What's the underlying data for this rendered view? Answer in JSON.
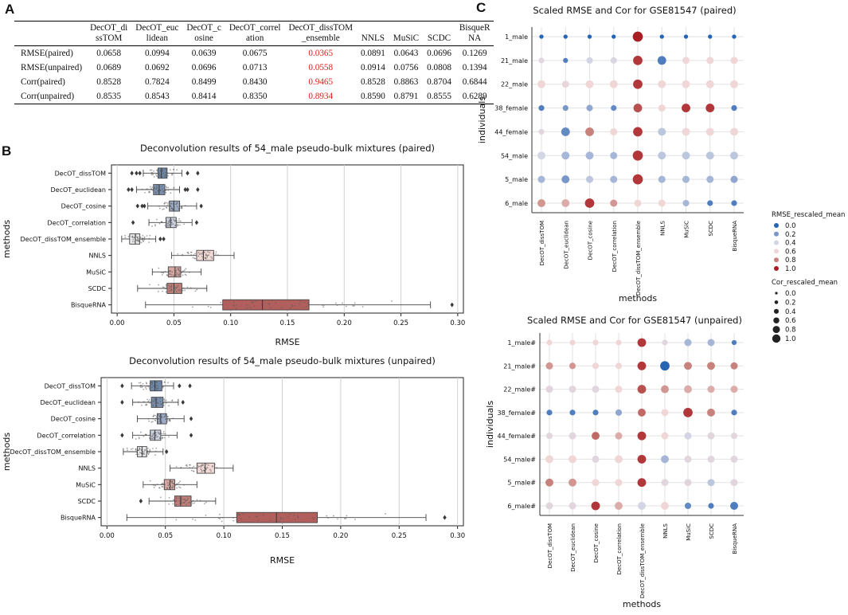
{
  "panels": {
    "a": "A",
    "b": "B",
    "c": "C"
  },
  "table": {
    "headers": [
      [
        "",
        ""
      ],
      [
        "DecOT_di",
        "ssTOM"
      ],
      [
        "DecOT_euc",
        "lidean"
      ],
      [
        "DecOT_c",
        "osine"
      ],
      [
        "DecOT_correl",
        "ation"
      ],
      [
        "DecOT_dissTOM",
        "_ensemble"
      ],
      [
        "",
        "NNLS"
      ],
      [
        "",
        "MuSiC"
      ],
      [
        "",
        "SCDC"
      ],
      [
        "BisqueR",
        "NA"
      ]
    ],
    "rows": [
      {
        "label": "RMSE(paired)",
        "values": [
          "0.0658",
          "0.0994",
          "0.0639",
          "0.0675",
          "0.0365",
          "0.0891",
          "0.0643",
          "0.0696",
          "0.1269"
        ]
      },
      {
        "label": "RMSE(unpaired)",
        "values": [
          "0.0689",
          "0.0692",
          "0.0696",
          "0.0713",
          "0.0558",
          "0.0914",
          "0.0756",
          "0.0808",
          "0.1394"
        ]
      },
      {
        "label": "Corr(paired)",
        "values": [
          "0.8528",
          "0.7824",
          "0.8499",
          "0.8430",
          "0.9465",
          "0.8528",
          "0.8863",
          "0.8704",
          "0.6844"
        ]
      },
      {
        "label": "Corr(unpaired)",
        "values": [
          "0.8535",
          "0.8543",
          "0.8414",
          "0.8350",
          "0.8934",
          "0.8590",
          "0.8791",
          "0.8555",
          "0.6289"
        ]
      }
    ],
    "highlight_col": 4,
    "highlight_color": "#e0201a"
  },
  "chart_data": [
    {
      "type": "box",
      "title": "Deconvolution results of 54_male pseudo-bulk mixtures (paired)",
      "xlabel": "RMSE",
      "ylabel": "methods",
      "xlim": [
        -0.005,
        0.305
      ],
      "xticks": [
        0.0,
        0.05,
        0.1,
        0.15,
        0.2,
        0.25,
        0.3
      ],
      "xtick_labels": [
        "0.00",
        "0.05",
        "0.10",
        "0.15",
        "0.20",
        "0.25",
        "0.30"
      ],
      "categories": [
        "DecOT_dissTOM",
        "DecOT_euclidean",
        "DecOT_cosine",
        "DecOT_correlation",
        "DecOT_dissTOM_ensemble",
        "NNLS",
        "MuSiC",
        "SCDC",
        "BisqueRNA"
      ],
      "colors": [
        "#6f87a8",
        "#7a8fae",
        "#9cabc6",
        "#cdd3e0",
        "#e9e9ec",
        "#f0d9d6",
        "#d8a7a2",
        "#c07e79",
        "#b15f5c"
      ],
      "boxes": [
        {
          "wlo": 0.023,
          "q1": 0.036,
          "med": 0.039,
          "q3": 0.044,
          "whi": 0.057,
          "fliers": [
            0.013,
            0.017,
            0.02,
            0.062,
            0.071
          ]
        },
        {
          "wlo": 0.017,
          "q1": 0.032,
          "med": 0.037,
          "q3": 0.042,
          "whi": 0.055,
          "fliers": [
            0.01,
            0.013,
            0.06,
            0.062,
            0.071
          ]
        },
        {
          "wlo": 0.027,
          "q1": 0.046,
          "med": 0.05,
          "q3": 0.055,
          "whi": 0.07,
          "fliers": [
            0.018,
            0.022,
            0.024,
            0.074
          ]
        },
        {
          "wlo": 0.028,
          "q1": 0.043,
          "med": 0.047,
          "q3": 0.052,
          "whi": 0.066,
          "fliers": [
            0.014,
            0.07
          ]
        },
        {
          "wlo": 0.004,
          "q1": 0.011,
          "med": 0.016,
          "q3": 0.02,
          "whi": 0.034,
          "fliers": [
            0.038,
            0.041
          ]
        },
        {
          "wlo": 0.048,
          "q1": 0.07,
          "med": 0.076,
          "q3": 0.085,
          "whi": 0.103,
          "fliers": []
        },
        {
          "wlo": 0.031,
          "q1": 0.045,
          "med": 0.051,
          "q3": 0.056,
          "whi": 0.074,
          "fliers": []
        },
        {
          "wlo": 0.018,
          "q1": 0.044,
          "med": 0.05,
          "q3": 0.057,
          "whi": 0.079,
          "fliers": []
        },
        {
          "wlo": 0.025,
          "q1": 0.093,
          "med": 0.128,
          "q3": 0.169,
          "whi": 0.276,
          "fliers": [
            0.295
          ]
        }
      ]
    },
    {
      "type": "box",
      "title": "Deconvolution results of 54_male pseudo-bulk mixtures (unpaired)",
      "xlabel": "RMSE",
      "ylabel": "methods",
      "xlim": [
        -0.005,
        0.305
      ],
      "xticks": [
        0.0,
        0.05,
        0.1,
        0.15,
        0.2,
        0.25,
        0.3
      ],
      "xtick_labels": [
        "0.00",
        "0.05",
        "0.10",
        "0.15",
        "0.20",
        "0.25",
        "0.30"
      ],
      "categories": [
        "DecOT_dissTOM",
        "DecOT_euclidean",
        "DecOT_cosine",
        "DecOT_correlation",
        "DecOT_dissTOM_ensemble",
        "NNLS",
        "MuSiC",
        "SCDC",
        "BisqueRNA"
      ],
      "colors": [
        "#6f87a8",
        "#7a8fae",
        "#9cabc6",
        "#cdd3e0",
        "#e9e9ec",
        "#f0d9d6",
        "#d8a7a2",
        "#c07e79",
        "#b15f5c"
      ],
      "boxes": [
        {
          "wlo": 0.021,
          "q1": 0.037,
          "med": 0.041,
          "q3": 0.047,
          "whi": 0.057,
          "fliers": [
            0.013,
            0.062,
            0.071
          ]
        },
        {
          "wlo": 0.022,
          "q1": 0.038,
          "med": 0.042,
          "q3": 0.048,
          "whi": 0.061,
          "fliers": [
            0.013,
            0.065
          ]
        },
        {
          "wlo": 0.026,
          "q1": 0.043,
          "med": 0.046,
          "q3": 0.051,
          "whi": 0.066,
          "fliers": [
            0.072
          ]
        },
        {
          "wlo": 0.022,
          "q1": 0.037,
          "med": 0.041,
          "q3": 0.046,
          "whi": 0.06,
          "fliers": [
            0.013,
            0.072
          ]
        },
        {
          "wlo": 0.014,
          "q1": 0.026,
          "med": 0.03,
          "q3": 0.034,
          "whi": 0.048,
          "fliers": [
            0.051
          ]
        },
        {
          "wlo": 0.054,
          "q1": 0.077,
          "med": 0.084,
          "q3": 0.092,
          "whi": 0.108,
          "fliers": []
        },
        {
          "wlo": 0.031,
          "q1": 0.049,
          "med": 0.054,
          "q3": 0.058,
          "whi": 0.077,
          "fliers": []
        },
        {
          "wlo": 0.036,
          "q1": 0.058,
          "med": 0.063,
          "q3": 0.072,
          "whi": 0.093,
          "fliers": [
            0.029
          ]
        },
        {
          "wlo": 0.017,
          "q1": 0.111,
          "med": 0.145,
          "q3": 0.18,
          "whi": 0.273,
          "fliers": [
            0.289
          ]
        }
      ]
    },
    {
      "type": "dotplot",
      "title": "Scaled RMSE and Cor for GSE81547 (paired)",
      "xlabel": "methods",
      "ylabel": "individuals",
      "methods": [
        "DecOT_dissTOM",
        "DecOT_euclidean",
        "DecOT_cosine",
        "DecOT_correlation",
        "DecOT_dissTOM_ensemble",
        "NNLS",
        "MuSiC",
        "SCDC",
        "BisqueRNA"
      ],
      "individuals": [
        "1_male",
        "21_male",
        "22_male",
        "38_female",
        "44_female",
        "54_male",
        "5_male",
        "6_male"
      ],
      "rmse_rescaled_mean": [
        [
          0.0,
          0.0,
          0.0,
          0.0,
          1.0,
          0.0,
          0.0,
          0.0,
          0.0
        ],
        [
          0.5,
          0.1,
          0.4,
          0.45,
          0.95,
          0.1,
          0.6,
          0.6,
          0.6
        ],
        [
          0.6,
          0.55,
          0.6,
          0.6,
          0.95,
          0.6,
          0.6,
          0.6,
          0.6
        ],
        [
          0.1,
          0.2,
          0.25,
          0.15,
          0.9,
          0.6,
          0.95,
          0.95,
          0.1
        ],
        [
          0.5,
          0.15,
          0.8,
          0.6,
          0.95,
          0.35,
          0.6,
          0.6,
          0.6
        ],
        [
          0.4,
          0.3,
          0.3,
          0.3,
          0.95,
          0.35,
          0.35,
          0.35,
          0.35
        ],
        [
          0.3,
          0.2,
          0.35,
          0.3,
          0.95,
          0.3,
          0.3,
          0.3,
          0.25
        ],
        [
          0.75,
          0.7,
          0.95,
          0.75,
          0.6,
          0.6,
          0.3,
          0.1,
          0.1
        ]
      ],
      "cor_rescaled_mean": [
        [
          0.1,
          0.1,
          0.1,
          0.1,
          0.9,
          0.1,
          0.1,
          0.1,
          0.1
        ],
        [
          0.3,
          0.2,
          0.4,
          0.4,
          0.8,
          0.7,
          0.5,
          0.5,
          0.5
        ],
        [
          0.6,
          0.5,
          0.6,
          0.6,
          0.8,
          0.6,
          0.6,
          0.6,
          0.6
        ],
        [
          0.3,
          0.3,
          0.4,
          0.3,
          0.7,
          0.5,
          0.7,
          0.7,
          0.3
        ],
        [
          0.3,
          0.7,
          0.7,
          0.5,
          0.8,
          0.6,
          0.6,
          0.6,
          0.6
        ],
        [
          0.6,
          0.6,
          0.6,
          0.5,
          0.9,
          0.6,
          0.6,
          0.6,
          0.6
        ],
        [
          0.5,
          0.6,
          0.5,
          0.5,
          0.9,
          0.5,
          0.5,
          0.5,
          0.5
        ],
        [
          0.6,
          0.6,
          0.8,
          0.5,
          0.5,
          0.5,
          0.4,
          0.3,
          0.3
        ]
      ]
    },
    {
      "type": "dotplot",
      "title": "Scaled RMSE and Cor for GSE81547 (unpaired)",
      "xlabel": "methods",
      "ylabel": "individuals",
      "methods": [
        "DecOT_dissTOM",
        "DecOT_euclidean",
        "DecOT_cosine",
        "DecOT_correlation",
        "DecOT_dissTOM_ensemble",
        "NNLS",
        "MuSiC",
        "SCDC",
        "BisqueRNA"
      ],
      "individuals": [
        "1_male#",
        "21_male#",
        "22_male#",
        "38_female#",
        "44_female#",
        "54_male#",
        "5_male#",
        "6_male#"
      ],
      "rmse_rescaled_mean": [
        [
          0.6,
          0.6,
          0.6,
          0.6,
          0.95,
          0.5,
          0.3,
          0.3,
          0.1
        ],
        [
          0.75,
          0.75,
          0.6,
          0.6,
          0.95,
          0.0,
          0.8,
          0.8,
          0.8
        ],
        [
          0.5,
          0.5,
          0.5,
          0.6,
          0.9,
          0.75,
          0.7,
          0.7,
          0.7
        ],
        [
          0.1,
          0.1,
          0.1,
          0.25,
          0.85,
          0.6,
          0.95,
          0.8,
          0.1
        ],
        [
          0.5,
          0.5,
          0.85,
          0.7,
          0.95,
          0.6,
          0.4,
          0.5,
          0.5
        ],
        [
          0.6,
          0.6,
          0.5,
          0.6,
          0.95,
          0.3,
          0.5,
          0.5,
          0.5
        ],
        [
          0.8,
          0.75,
          0.6,
          0.6,
          0.95,
          0.5,
          0.5,
          0.35,
          0.5
        ],
        [
          0.5,
          0.5,
          0.95,
          0.7,
          0.4,
          0.6,
          0.15,
          0.1,
          0.1
        ]
      ],
      "cor_rescaled_mean": [
        [
          0.3,
          0.3,
          0.3,
          0.3,
          0.7,
          0.3,
          0.5,
          0.5,
          0.2
        ],
        [
          0.5,
          0.4,
          0.4,
          0.4,
          0.7,
          0.8,
          0.6,
          0.6,
          0.5
        ],
        [
          0.5,
          0.5,
          0.5,
          0.5,
          0.7,
          0.6,
          0.6,
          0.5,
          0.5
        ],
        [
          0.3,
          0.3,
          0.3,
          0.4,
          0.6,
          0.5,
          0.8,
          0.6,
          0.3
        ],
        [
          0.4,
          0.5,
          0.6,
          0.5,
          0.7,
          0.5,
          0.5,
          0.5,
          0.4
        ],
        [
          0.6,
          0.6,
          0.5,
          0.6,
          0.7,
          0.6,
          0.5,
          0.5,
          0.5
        ],
        [
          0.6,
          0.6,
          0.5,
          0.5,
          0.7,
          0.5,
          0.5,
          0.5,
          0.5
        ],
        [
          0.5,
          0.5,
          0.7,
          0.6,
          0.6,
          0.6,
          0.4,
          0.3,
          0.6
        ]
      ]
    }
  ],
  "legend": {
    "rmse_title": "RMSE_rescaled_mean",
    "rmse_values": [
      "0.0",
      "0.2",
      "0.4",
      "0.6",
      "0.8",
      "1.0"
    ],
    "cor_title": "Cor_rescaled_mean",
    "cor_values": [
      "0.0",
      "0.2",
      "0.4",
      "0.6",
      "0.8",
      "1.0"
    ]
  }
}
